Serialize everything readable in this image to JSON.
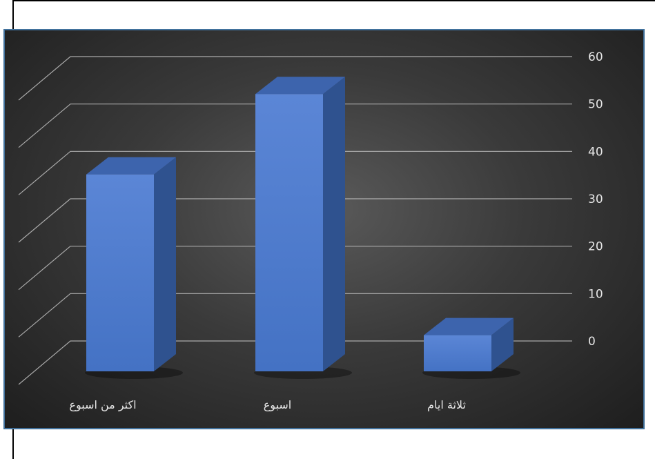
{
  "colors": {
    "bar_front": "#4472c4",
    "bar_front_light": "#5b86d6",
    "bar_side": "#2f528f",
    "bar_top": "#3d64ad",
    "gridline": "#bfbfbf",
    "panel_border": "#41719c"
  },
  "chart_data": {
    "type": "bar",
    "style": "3d-column",
    "categories": [
      "اكثر من اسبوع",
      "اسبوع",
      "ثلاثة ايام"
    ],
    "values": [
      38,
      55,
      4
    ],
    "ylim": [
      0,
      60
    ],
    "yticks": [
      0,
      10,
      20,
      30,
      40,
      50,
      60
    ],
    "y_axis_side": "right",
    "grid": true,
    "legend": "none",
    "title": "",
    "xlabel": "",
    "ylabel": ""
  }
}
